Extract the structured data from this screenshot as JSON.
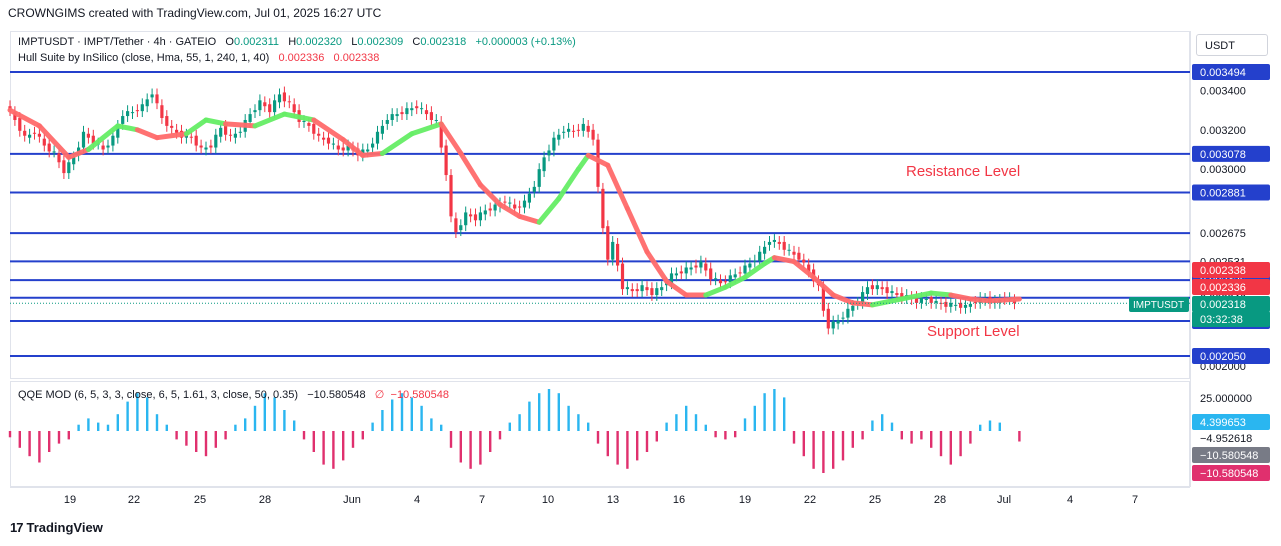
{
  "caption": "CROWNGIMS created with TradingView.com, Jul 01, 2025 16:27 UTC",
  "currency_label": "USDT",
  "brand": "TradingView",
  "legend": {
    "symbol": "IMPTUSDT · IMPT/Tether · 4h · GATEIO",
    "o_label": "O",
    "o_value": "0.002311",
    "h_label": "H",
    "h_value": "0.002320",
    "l_label": "L",
    "l_value": "0.002309",
    "c_label": "C",
    "c_value": "0.002318",
    "change": "+0.000003 (+0.13%)",
    "hull_name": "Hull Suite by InSilico (close, Hma, 55, 1, 240, 1, 40)",
    "hull_v1": "0.002336",
    "hull_v2": "0.002338",
    "qqe_name": "QQE MOD (6, 5, 3, 3, close, 6, 5, 1.61, 3, close, 50, 0.35)",
    "qqe_v1": "−10.580548",
    "qqe_sym": "∅",
    "qqe_v2": "−10.580548"
  },
  "annotations": {
    "resistance": "Resistance Level",
    "support": "Support Level"
  },
  "colors": {
    "level_line": "#2440cc",
    "up": "#089981",
    "down": "#f23645",
    "hull_up": "#66ee66",
    "hull_down": "#ff6b6b",
    "qqe_up": "#2ab6f0",
    "qqe_down": "#e0306e",
    "qqe_neutral": "#a0a0a0"
  },
  "chart_data": {
    "type": "candlestick",
    "symbol_tag": "IMPTUSDT",
    "countdown": "03:32:38",
    "x_ticks": [
      "19",
      "22",
      "25",
      "28",
      "Jun",
      "4",
      "7",
      "10",
      "13",
      "16",
      "19",
      "22",
      "25",
      "28",
      "Jul",
      "4",
      "7"
    ],
    "y_ticks": [
      "0.003400",
      "0.003200",
      "0.003000",
      "0.002000"
    ],
    "horizontal_levels": [
      {
        "value": 0.003494,
        "label": "0.003494"
      },
      {
        "value": 0.003078,
        "label": "0.003078"
      },
      {
        "value": 0.002881,
        "label": "0.002881"
      },
      {
        "value": 0.002675,
        "label": "0.002675"
      },
      {
        "value": 0.002531,
        "label": "0.002531"
      },
      {
        "value": 0.002436,
        "label": "0.002436"
      },
      {
        "value": 0.002346,
        "label": "0.002346"
      },
      {
        "value": 0.002228,
        "label": "0.002228"
      },
      {
        "value": 0.00205,
        "label": "0.002050"
      }
    ],
    "right_tags": [
      {
        "value": 0.003494,
        "label": "0.003494",
        "kind": "level"
      },
      {
        "value": 0.003078,
        "label": "0.003078",
        "kind": "level"
      },
      {
        "value": 0.002881,
        "label": "0.002881",
        "kind": "level"
      },
      {
        "value": 0.002675,
        "label": "0.002675",
        "kind": "plain"
      },
      {
        "value": 0.002531,
        "label": "0.002531",
        "kind": "plain"
      },
      {
        "value": 0.002436,
        "label": "0.002436",
        "kind": "level"
      },
      {
        "value": 0.002346,
        "label": "0.002346",
        "kind": "plain"
      },
      {
        "value": 0.002338,
        "label": "0.002338",
        "kind": "hull2"
      },
      {
        "value": 0.002336,
        "label": "0.002336",
        "kind": "hull1"
      },
      {
        "value": 0.002318,
        "label": "0.002318",
        "kind": "price"
      },
      {
        "value": 0.002228,
        "label": "0.002228",
        "kind": "level"
      },
      {
        "value": 0.00205,
        "label": "0.002050",
        "kind": "level"
      }
    ],
    "close_series": [
      [
        0,
        0.00333
      ],
      [
        2,
        0.00325
      ],
      [
        4,
        0.00316
      ],
      [
        6,
        0.00319
      ],
      [
        8,
        0.00312
      ],
      [
        10,
        0.00308
      ],
      [
        12,
        0.00299
      ],
      [
        14,
        0.00306
      ],
      [
        16,
        0.00318
      ],
      [
        18,
        0.00314
      ],
      [
        20,
        0.0031
      ],
      [
        22,
        0.00316
      ],
      [
        24,
        0.00328
      ],
      [
        26,
        0.00329
      ],
      [
        28,
        0.00332
      ],
      [
        30,
        0.00339
      ],
      [
        32,
        0.00326
      ],
      [
        34,
        0.0032
      ],
      [
        36,
        0.00317
      ],
      [
        38,
        0.00316
      ],
      [
        40,
        0.0031
      ],
      [
        42,
        0.00312
      ],
      [
        44,
        0.00321
      ],
      [
        46,
        0.00316
      ],
      [
        48,
        0.0032
      ],
      [
        50,
        0.00328
      ],
      [
        52,
        0.00334
      ],
      [
        54,
        0.0033
      ],
      [
        56,
        0.00338
      ],
      [
        58,
        0.00333
      ],
      [
        60,
        0.00325
      ],
      [
        62,
        0.00322
      ],
      [
        64,
        0.00316
      ],
      [
        66,
        0.00314
      ],
      [
        68,
        0.0031
      ],
      [
        70,
        0.00311
      ],
      [
        72,
        0.00308
      ],
      [
        74,
        0.0031
      ],
      [
        76,
        0.00318
      ],
      [
        78,
        0.00326
      ],
      [
        80,
        0.00328
      ],
      [
        82,
        0.0033
      ],
      [
        84,
        0.00332
      ],
      [
        86,
        0.00328
      ],
      [
        88,
        0.00324
      ],
      [
        90,
        0.00298
      ],
      [
        91,
        0.00275
      ],
      [
        92,
        0.00268
      ],
      [
        94,
        0.00277
      ],
      [
        96,
        0.00275
      ],
      [
        98,
        0.00279
      ],
      [
        100,
        0.00281
      ],
      [
        102,
        0.00284
      ],
      [
        104,
        0.0028
      ],
      [
        106,
        0.00283
      ],
      [
        108,
        0.00292
      ],
      [
        110,
        0.00306
      ],
      [
        112,
        0.00315
      ],
      [
        114,
        0.0032
      ],
      [
        116,
        0.00319
      ],
      [
        118,
        0.00322
      ],
      [
        120,
        0.00316
      ],
      [
        121,
        0.0029
      ],
      [
        122,
        0.0027
      ],
      [
        123,
        0.00255
      ],
      [
        124,
        0.00262
      ],
      [
        126,
        0.0024
      ],
      [
        128,
        0.00238
      ],
      [
        130,
        0.0024
      ],
      [
        132,
        0.00237
      ],
      [
        134,
        0.0024
      ],
      [
        136,
        0.00246
      ],
      [
        138,
        0.00248
      ],
      [
        140,
        0.0025
      ],
      [
        142,
        0.00252
      ],
      [
        144,
        0.00245
      ],
      [
        146,
        0.00242
      ],
      [
        148,
        0.00245
      ],
      [
        150,
        0.00248
      ],
      [
        152,
        0.00252
      ],
      [
        154,
        0.00257
      ],
      [
        156,
        0.00264
      ],
      [
        158,
        0.00262
      ],
      [
        160,
        0.00258
      ],
      [
        162,
        0.00255
      ],
      [
        164,
        0.00248
      ],
      [
        166,
        0.0024
      ],
      [
        167,
        0.00228
      ],
      [
        168,
        0.0022
      ],
      [
        170,
        0.00223
      ],
      [
        172,
        0.00228
      ],
      [
        174,
        0.00233
      ],
      [
        176,
        0.0024
      ],
      [
        178,
        0.0024
      ],
      [
        180,
        0.00238
      ],
      [
        182,
        0.00236
      ],
      [
        184,
        0.00235
      ],
      [
        186,
        0.00233
      ],
      [
        188,
        0.00234
      ],
      [
        190,
        0.00232
      ],
      [
        192,
        0.00231
      ],
      [
        194,
        0.00231
      ],
      [
        196,
        0.0023
      ],
      [
        198,
        0.00233
      ],
      [
        200,
        0.00234
      ],
      [
        202,
        0.00232
      ],
      [
        204,
        0.00235
      ],
      [
        206,
        0.002318
      ]
    ],
    "hull_series": [
      [
        0,
        0.0033,
        0
      ],
      [
        6,
        0.00322,
        0
      ],
      [
        12,
        0.00306,
        0
      ],
      [
        16,
        0.0031,
        1
      ],
      [
        22,
        0.00322,
        1
      ],
      [
        26,
        0.0032,
        0
      ],
      [
        30,
        0.00316,
        0
      ],
      [
        36,
        0.00318,
        1
      ],
      [
        40,
        0.00325,
        1
      ],
      [
        44,
        0.00323,
        0
      ],
      [
        50,
        0.00322,
        1
      ],
      [
        56,
        0.00328,
        1
      ],
      [
        62,
        0.00325,
        0
      ],
      [
        68,
        0.00315,
        0
      ],
      [
        72,
        0.00307,
        0
      ],
      [
        76,
        0.00308,
        1
      ],
      [
        82,
        0.00318,
        1
      ],
      [
        88,
        0.00323,
        0
      ],
      [
        92,
        0.00308,
        0
      ],
      [
        96,
        0.00292,
        0
      ],
      [
        100,
        0.00282,
        0
      ],
      [
        104,
        0.00276,
        0
      ],
      [
        108,
        0.00273,
        1
      ],
      [
        112,
        0.00285,
        1
      ],
      [
        116,
        0.003,
        1
      ],
      [
        118,
        0.00307,
        0
      ],
      [
        122,
        0.00302,
        0
      ],
      [
        126,
        0.0028,
        0
      ],
      [
        130,
        0.00258,
        0
      ],
      [
        134,
        0.00243,
        0
      ],
      [
        138,
        0.00236,
        0
      ],
      [
        142,
        0.00236,
        1
      ],
      [
        146,
        0.0024,
        1
      ],
      [
        150,
        0.00245,
        1
      ],
      [
        154,
        0.00252,
        1
      ],
      [
        156,
        0.00255,
        0
      ],
      [
        160,
        0.00253,
        0
      ],
      [
        164,
        0.00245,
        0
      ],
      [
        168,
        0.00236,
        0
      ],
      [
        172,
        0.00232,
        0
      ],
      [
        176,
        0.00231,
        1
      ],
      [
        182,
        0.00234,
        1
      ],
      [
        188,
        0.00237,
        1
      ],
      [
        192,
        0.00236,
        0
      ],
      [
        196,
        0.00234,
        0
      ],
      [
        200,
        0.00233,
        0
      ],
      [
        206,
        0.00234,
        0
      ]
    ],
    "qqe": {
      "y_tick_labels": [
        "25.000000"
      ],
      "values": [
        {
          "value": 4.399653,
          "label": "4.399653",
          "kind": "up"
        },
        {
          "value": -4.952618,
          "label": "−4.952618",
          "kind": "plain"
        },
        {
          "value": -10.580548,
          "label": "−10.580548",
          "kind": "gray"
        },
        {
          "value": -10.580548,
          "label": "−10.580548",
          "kind": "down"
        }
      ],
      "bars": [
        [
          0,
          -3
        ],
        [
          2,
          -8
        ],
        [
          4,
          -12
        ],
        [
          6,
          -15
        ],
        [
          8,
          -10
        ],
        [
          10,
          -6
        ],
        [
          12,
          -4
        ],
        [
          14,
          3
        ],
        [
          16,
          6
        ],
        [
          18,
          4
        ],
        [
          20,
          3
        ],
        [
          22,
          8
        ],
        [
          24,
          14
        ],
        [
          26,
          18
        ],
        [
          28,
          16
        ],
        [
          30,
          8
        ],
        [
          32,
          3
        ],
        [
          34,
          -4
        ],
        [
          36,
          -7
        ],
        [
          38,
          -10
        ],
        [
          40,
          -12
        ],
        [
          42,
          -8
        ],
        [
          44,
          -4
        ],
        [
          46,
          3
        ],
        [
          48,
          6
        ],
        [
          50,
          12
        ],
        [
          52,
          18
        ],
        [
          54,
          16
        ],
        [
          56,
          10
        ],
        [
          58,
          5
        ],
        [
          60,
          -4
        ],
        [
          62,
          -10
        ],
        [
          64,
          -16
        ],
        [
          66,
          -18
        ],
        [
          68,
          -14
        ],
        [
          70,
          -8
        ],
        [
          72,
          -4
        ],
        [
          74,
          4
        ],
        [
          76,
          10
        ],
        [
          78,
          15
        ],
        [
          80,
          18
        ],
        [
          82,
          16
        ],
        [
          84,
          12
        ],
        [
          86,
          6
        ],
        [
          88,
          3
        ],
        [
          90,
          -8
        ],
        [
          92,
          -15
        ],
        [
          94,
          -18
        ],
        [
          96,
          -16
        ],
        [
          98,
          -10
        ],
        [
          100,
          -4
        ],
        [
          102,
          4
        ],
        [
          104,
          8
        ],
        [
          106,
          14
        ],
        [
          108,
          18
        ],
        [
          110,
          20
        ],
        [
          112,
          18
        ],
        [
          114,
          12
        ],
        [
          116,
          8
        ],
        [
          118,
          4
        ],
        [
          120,
          -6
        ],
        [
          122,
          -12
        ],
        [
          124,
          -16
        ],
        [
          126,
          -18
        ],
        [
          128,
          -14
        ],
        [
          130,
          -10
        ],
        [
          132,
          -5
        ],
        [
          134,
          4
        ],
        [
          136,
          8
        ],
        [
          138,
          12
        ],
        [
          140,
          8
        ],
        [
          142,
          3
        ],
        [
          144,
          -3
        ],
        [
          146,
          -4
        ],
        [
          148,
          -3
        ],
        [
          150,
          6
        ],
        [
          152,
          12
        ],
        [
          154,
          18
        ],
        [
          156,
          20
        ],
        [
          158,
          16
        ],
        [
          160,
          -6
        ],
        [
          162,
          -12
        ],
        [
          164,
          -18
        ],
        [
          166,
          -20
        ],
        [
          168,
          -18
        ],
        [
          170,
          -14
        ],
        [
          172,
          -8
        ],
        [
          174,
          -4
        ],
        [
          176,
          5
        ],
        [
          178,
          8
        ],
        [
          180,
          4
        ],
        [
          182,
          -4
        ],
        [
          184,
          -6
        ],
        [
          186,
          -4
        ],
        [
          188,
          -8
        ],
        [
          190,
          -12
        ],
        [
          192,
          -16
        ],
        [
          194,
          -12
        ],
        [
          196,
          -6
        ],
        [
          198,
          3
        ],
        [
          200,
          5
        ],
        [
          202,
          4
        ],
        [
          206,
          -5
        ]
      ]
    }
  }
}
